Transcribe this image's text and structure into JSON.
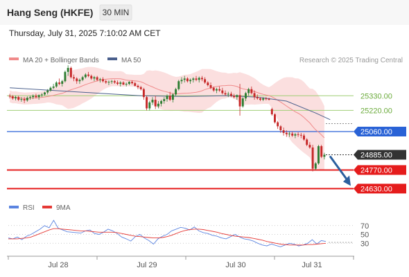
{
  "header": {
    "instrument": "Hang Seng (HKFE)",
    "timeframe": "30 MIN",
    "datetime": "Thursday, July 31, 2025 7:10:02 AM CET"
  },
  "legend": {
    "ma_bb": "MA 20 + Bollinger Bands",
    "ma50": "MA 50",
    "rsi": "RSI",
    "ma9": "9MA"
  },
  "credit": "Research © 2025 Trading Central",
  "colors": {
    "up": "#2e7d32",
    "down": "#c62828",
    "band": "#f9d4d4",
    "ma20": "#f08a8a",
    "ma50": "#4a5f8c",
    "resistance": "#2962d6",
    "support": "#e51c1c",
    "pivot": "#9fce74",
    "current": "#333333",
    "arrow": "#2b5f9e",
    "rsi": "#5b84e0",
    "rsi_ma": "#e53935"
  },
  "chart_data": [
    {
      "type": "candlestick",
      "x_ticks": [
        "Jul 28",
        "Jul 29",
        "Jul 30",
        "Jul 31"
      ],
      "ylim": [
        24590,
        25530
      ],
      "levels": [
        {
          "label": "25330.00",
          "value": 25330,
          "kind": "pivot"
        },
        {
          "label": "25220.00",
          "value": 25220,
          "kind": "pivot"
        },
        {
          "label": "25060.00",
          "value": 25060,
          "kind": "resistance"
        },
        {
          "label": "24885.00",
          "value": 24885,
          "kind": "current"
        },
        {
          "label": "24770.00",
          "value": 24770,
          "kind": "support"
        },
        {
          "label": "24630.00",
          "value": 24630,
          "kind": "support"
        }
      ],
      "forecast_arrow": {
        "from": 24885,
        "to": 24640
      },
      "candles": [
        [
          25330,
          25345,
          25310,
          25325
        ],
        [
          25325,
          25335,
          25300,
          25310
        ],
        [
          25310,
          25330,
          25295,
          25320
        ],
        [
          25320,
          25330,
          25290,
          25300
        ],
        [
          25300,
          25320,
          25285,
          25305
        ],
        [
          25305,
          25320,
          25275,
          25295
        ],
        [
          25295,
          25325,
          25285,
          25315
        ],
        [
          25315,
          25330,
          25300,
          25320
        ],
        [
          25320,
          25340,
          25305,
          25330
        ],
        [
          25330,
          25345,
          25310,
          25320
        ],
        [
          25320,
          25340,
          25300,
          25335
        ],
        [
          25335,
          25350,
          25320,
          25340
        ],
        [
          25340,
          25360,
          25330,
          25355
        ],
        [
          25355,
          25380,
          25340,
          25370
        ],
        [
          25370,
          25400,
          25360,
          25390
        ],
        [
          25390,
          25420,
          25380,
          25400
        ],
        [
          25400,
          25440,
          25390,
          25430
        ],
        [
          25430,
          25460,
          25410,
          25420
        ],
        [
          25420,
          25450,
          25400,
          25440
        ],
        [
          25440,
          25520,
          25430,
          25510
        ],
        [
          25510,
          25560,
          25480,
          25540
        ],
        [
          25540,
          25550,
          25460,
          25470
        ],
        [
          25470,
          25490,
          25440,
          25460
        ],
        [
          25460,
          25470,
          25420,
          25440
        ],
        [
          25440,
          25460,
          25420,
          25450
        ],
        [
          25450,
          25480,
          25440,
          25470
        ],
        [
          25470,
          25500,
          25460,
          25490
        ],
        [
          25490,
          25510,
          25470,
          25480
        ],
        [
          25480,
          25490,
          25450,
          25460
        ],
        [
          25460,
          25480,
          25440,
          25470
        ],
        [
          25470,
          25480,
          25440,
          25450
        ],
        [
          25450,
          25465,
          25430,
          25455
        ],
        [
          25455,
          25470,
          25430,
          25440
        ],
        [
          25440,
          25450,
          25420,
          25430
        ],
        [
          25430,
          25445,
          25410,
          25435
        ],
        [
          25435,
          25450,
          25420,
          25440
        ],
        [
          25440,
          25450,
          25420,
          25430
        ],
        [
          25430,
          25445,
          25410,
          25420
        ],
        [
          25420,
          25440,
          25400,
          25430
        ],
        [
          25430,
          25440,
          25410,
          25415
        ],
        [
          25415,
          25430,
          25400,
          25420
        ],
        [
          25420,
          25440,
          25410,
          25435
        ],
        [
          25435,
          25445,
          25415,
          25425
        ],
        [
          25425,
          25435,
          25400,
          25405
        ],
        [
          25405,
          25415,
          25380,
          25395
        ],
        [
          25395,
          25405,
          25370,
          25380
        ],
        [
          25380,
          25390,
          25300,
          25320
        ],
        [
          25320,
          25330,
          25220,
          25235
        ],
        [
          25235,
          25290,
          25220,
          25280
        ],
        [
          25280,
          25320,
          25260,
          25300
        ],
        [
          25300,
          25330,
          25230,
          25250
        ],
        [
          25250,
          25290,
          25235,
          25270
        ],
        [
          25270,
          25300,
          25250,
          25290
        ],
        [
          25290,
          25320,
          25270,
          25305
        ],
        [
          25305,
          25340,
          25285,
          25330
        ],
        [
          25330,
          25360,
          25290,
          25300
        ],
        [
          25300,
          25350,
          25280,
          25340
        ],
        [
          25340,
          25390,
          25330,
          25380
        ],
        [
          25380,
          25450,
          25370,
          25440
        ],
        [
          25440,
          25470,
          25420,
          25450
        ],
        [
          25450,
          25480,
          25430,
          25460
        ],
        [
          25460,
          25470,
          25430,
          25440
        ],
        [
          25440,
          25460,
          25420,
          25450
        ],
        [
          25450,
          25470,
          25430,
          25460
        ],
        [
          25460,
          25480,
          25440,
          25450
        ],
        [
          25450,
          25475,
          25430,
          25465
        ],
        [
          25465,
          25480,
          25440,
          25455
        ],
        [
          25455,
          25470,
          25420,
          25430
        ],
        [
          25430,
          25440,
          25400,
          25410
        ],
        [
          25410,
          25430,
          25380,
          25390
        ],
        [
          25390,
          25400,
          25360,
          25370
        ],
        [
          25370,
          25390,
          25350,
          25380
        ],
        [
          25380,
          25400,
          25360,
          25370
        ],
        [
          25370,
          25390,
          25340,
          25350
        ],
        [
          25350,
          25370,
          25330,
          25340
        ],
        [
          25340,
          25360,
          25320,
          25345
        ],
        [
          25345,
          25360,
          25320,
          25330
        ],
        [
          25330,
          25345,
          25310,
          25320
        ],
        [
          25320,
          25340,
          25300,
          25335
        ],
        [
          25335,
          25420,
          25180,
          25250
        ],
        [
          25250,
          25320,
          25240,
          25310
        ],
        [
          25310,
          25360,
          25290,
          25350
        ],
        [
          25350,
          25390,
          25330,
          25380
        ],
        [
          25380,
          25400,
          25340,
          25350
        ],
        [
          25350,
          25370,
          25300,
          25320
        ],
        [
          25320,
          25340,
          25300,
          25310
        ],
        [
          25310,
          25320,
          25290,
          25300
        ],
        [
          25300,
          25320,
          25290,
          25310
        ],
        [
          25310,
          25320,
          25295,
          25305
        ],
        [
          25305,
          25315,
          25295,
          25300
        ],
        [
          25230,
          25240,
          25180,
          25190
        ],
        [
          25190,
          25200,
          25120,
          25130
        ],
        [
          25130,
          25140,
          25080,
          25100
        ],
        [
          25100,
          25110,
          25050,
          25070
        ],
        [
          25070,
          25090,
          25030,
          25050
        ],
        [
          25050,
          25070,
          25020,
          25040
        ],
        [
          25040,
          25060,
          25020,
          25045
        ],
        [
          25045,
          25060,
          25020,
          25030
        ],
        [
          25030,
          25050,
          25010,
          25040
        ],
        [
          25040,
          25055,
          25020,
          25035
        ],
        [
          25035,
          25050,
          25010,
          25030
        ],
        [
          25030,
          25045,
          24990,
          25000
        ],
        [
          25000,
          25010,
          24950,
          24960
        ],
        [
          24960,
          24980,
          24930,
          24940
        ],
        [
          24940,
          24960,
          24760,
          24780
        ],
        [
          24780,
          24830,
          24770,
          24820
        ],
        [
          24820,
          24960,
          24810,
          24950
        ],
        [
          24950,
          24960,
          24860,
          24870
        ],
        [
          24870,
          24900,
          24850,
          24885
        ]
      ],
      "ma50_points": [
        [
          0,
          25390
        ],
        [
          15,
          25370
        ],
        [
          30,
          25350
        ],
        [
          45,
          25330
        ],
        [
          60,
          25325
        ],
        [
          75,
          25330
        ],
        [
          85,
          25320
        ],
        [
          95,
          25290
        ],
        [
          105,
          25200
        ],
        [
          110,
          25150
        ]
      ]
    },
    {
      "type": "line",
      "series": [
        {
          "name": "RSI",
          "values": [
            42,
            40,
            44,
            38,
            46,
            50,
            56,
            62,
            70,
            65,
            82,
            64,
            60,
            56,
            55,
            54,
            53,
            58,
            60,
            52,
            50,
            55,
            62,
            58,
            52,
            44,
            40,
            35,
            45,
            50,
            42,
            36,
            28,
            40,
            46,
            50,
            58,
            62,
            66,
            64,
            60,
            67,
            58,
            54,
            52,
            48,
            46,
            42,
            40,
            45,
            50,
            44,
            40,
            38,
            35,
            30,
            26,
            24,
            28,
            25,
            22,
            26,
            30,
            28,
            24,
            26,
            30,
            38,
            28,
            36,
            34
          ]
        },
        {
          "name": "9MA",
          "values": [
            40,
            40,
            40,
            41,
            42,
            44,
            48,
            52,
            56,
            60,
            63,
            63,
            62,
            61,
            60,
            59,
            58,
            58,
            57,
            56,
            55,
            55,
            55,
            55,
            54,
            52,
            50,
            48,
            46,
            45,
            44,
            43,
            42,
            42,
            43,
            45,
            48,
            52,
            56,
            59,
            61,
            62,
            62,
            61,
            59,
            57,
            55,
            52,
            50,
            48,
            46,
            45,
            44,
            43,
            41,
            39,
            37,
            34,
            32,
            30,
            28,
            27,
            26,
            26,
            26,
            26,
            27,
            27,
            28,
            29,
            30
          ]
        }
      ],
      "y_ticks": [
        70,
        50,
        30
      ],
      "ylim": [
        10,
        90
      ]
    }
  ]
}
